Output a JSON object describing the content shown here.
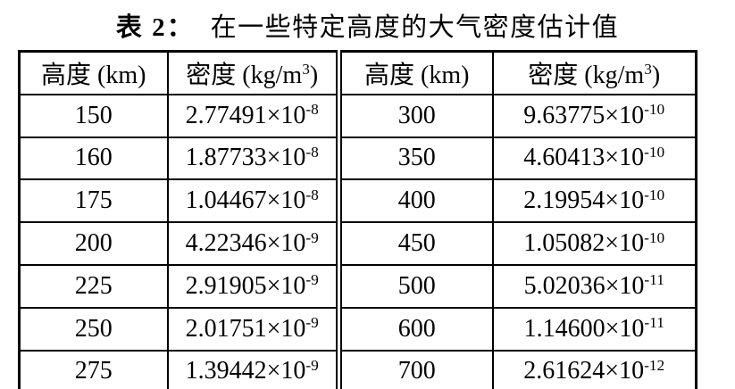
{
  "caption": {
    "label": "表 2：",
    "text": "在一些特定高度的大气密度估计值"
  },
  "table": {
    "headers": {
      "altitude_left": "高度 (km)",
      "density_prefix_left": "密度 (kg/m",
      "density_sup_left": "3",
      "density_suffix_left": ")",
      "altitude_right": "高度 (km)",
      "density_prefix_right": "密度 (kg/m",
      "density_sup_right": "3",
      "density_suffix_right": ")"
    },
    "rows": [
      {
        "alt_l": "150",
        "mant_l": "2.77491×10",
        "exp_l": "-8",
        "alt_r": "300",
        "mant_r": "9.63775×10",
        "exp_r": "-10"
      },
      {
        "alt_l": "160",
        "mant_l": "1.87733×10",
        "exp_l": "-8",
        "alt_r": "350",
        "mant_r": "4.60413×10",
        "exp_r": "-10"
      },
      {
        "alt_l": "175",
        "mant_l": "1.04467×10",
        "exp_l": "-8",
        "alt_r": "400",
        "mant_r": "2.19954×10",
        "exp_r": "-10"
      },
      {
        "alt_l": "200",
        "mant_l": "4.22346×10",
        "exp_l": "-9",
        "alt_r": "450",
        "mant_r": "1.05082×10",
        "exp_r": "-10"
      },
      {
        "alt_l": "225",
        "mant_l": "2.91905×10",
        "exp_l": "-9",
        "alt_r": "500",
        "mant_r": "5.02036×10",
        "exp_r": "-11"
      },
      {
        "alt_l": "250",
        "mant_l": "2.01751×10",
        "exp_l": "-9",
        "alt_r": "600",
        "mant_r": "1.14600×10",
        "exp_r": "-11"
      },
      {
        "alt_l": "275",
        "mant_l": "1.39442×10",
        "exp_l": "-9",
        "alt_r": "700",
        "mant_r": "2.61624×10",
        "exp_r": "-12"
      }
    ]
  },
  "colors": {
    "text": "#000000",
    "background": "#ffffff",
    "border": "#000000"
  }
}
